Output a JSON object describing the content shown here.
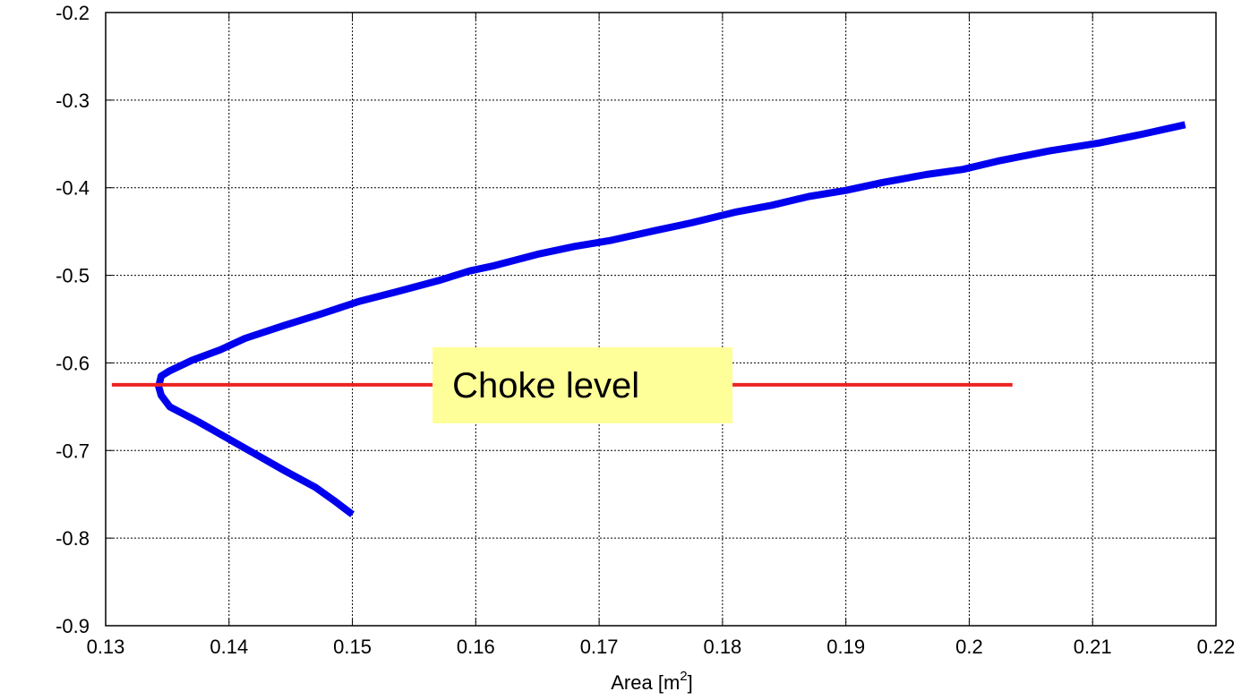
{
  "chart_data": {
    "type": "line",
    "title": "",
    "xlabel": "Area [m",
    "xlabel_superscript": "2",
    "xlabel_suffix": "]",
    "ylabel": "",
    "xlim": [
      0.13,
      0.22
    ],
    "ylim": [
      -0.9,
      -0.2
    ],
    "x_ticks": [
      0.13,
      0.14,
      0.15,
      0.16,
      0.17,
      0.18,
      0.19,
      0.2,
      0.21,
      0.22
    ],
    "x_tick_labels": [
      "0.13",
      "0.14",
      "0.15",
      "0.16",
      "0.17",
      "0.18",
      "0.19",
      "0.2",
      "0.21",
      "0.22"
    ],
    "y_ticks": [
      -0.2,
      -0.3,
      -0.4,
      -0.5,
      -0.6,
      -0.7,
      -0.8,
      -0.9
    ],
    "y_tick_labels": [
      "-0.2",
      "-0.3",
      "-0.4",
      "-0.5",
      "-0.6",
      "-0.7",
      "-0.8",
      "-0.9"
    ],
    "grid": true,
    "series": [
      {
        "color": "#0000ee",
        "x": [
          0.15,
          0.1485,
          0.147,
          0.1445,
          0.142,
          0.1395,
          0.1375,
          0.1352,
          0.1345,
          0.1343,
          0.1345,
          0.1352,
          0.137,
          0.1393,
          0.1413,
          0.1445,
          0.1475,
          0.1505,
          0.1535,
          0.157,
          0.1595,
          0.1615,
          0.165,
          0.168,
          0.171,
          0.1745,
          0.1775,
          0.181,
          0.184,
          0.187,
          0.19,
          0.193,
          0.1965,
          0.1995,
          0.2025,
          0.2065,
          0.2105,
          0.214,
          0.2175
        ],
        "y": [
          -0.773,
          -0.757,
          -0.742,
          -0.723,
          -0.703,
          -0.683,
          -0.667,
          -0.65,
          -0.637,
          -0.627,
          -0.615,
          -0.609,
          -0.597,
          -0.585,
          -0.572,
          -0.557,
          -0.544,
          -0.53,
          -0.519,
          -0.506,
          -0.495,
          -0.489,
          -0.476,
          -0.467,
          -0.46,
          -0.449,
          -0.44,
          -0.428,
          -0.42,
          -0.41,
          -0.403,
          -0.394,
          -0.385,
          -0.379,
          -0.369,
          -0.358,
          -0.349,
          -0.339,
          -0.328
        ]
      },
      {
        "color": "#ee2222",
        "x": [
          0.1305,
          0.2035
        ],
        "y": [
          -0.625,
          -0.625
        ]
      }
    ],
    "annotations": [
      {
        "text": "Choke level",
        "x": 0.1565,
        "y": -0.625,
        "background": "#ffff99"
      }
    ]
  }
}
